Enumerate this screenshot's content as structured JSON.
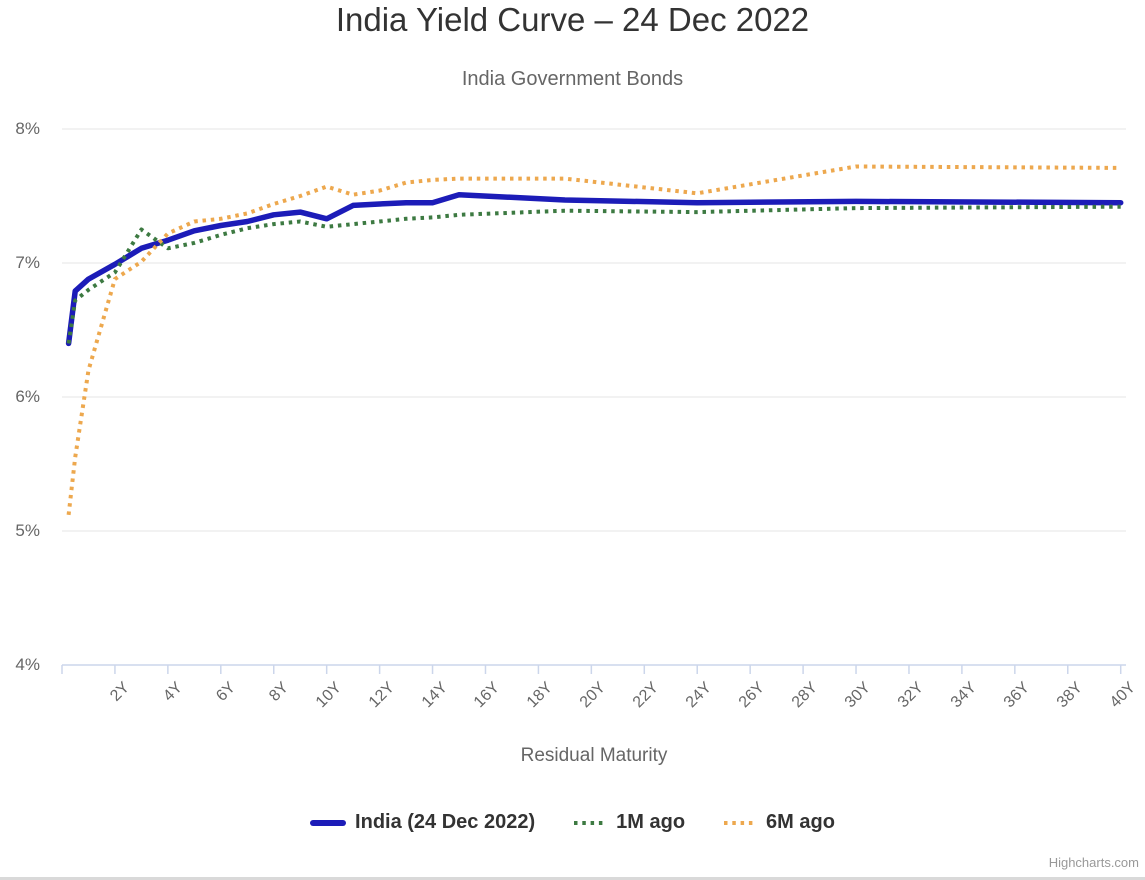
{
  "header": {
    "title": "India Yield Curve – 24 Dec 2022",
    "subtitle": "India Government Bonds"
  },
  "credits": {
    "label": "Highcharts.com"
  },
  "chart_data": {
    "type": "line",
    "title": "India Yield Curve – 24 Dec 2022",
    "subtitle": "India Government Bonds",
    "xlabel": "Residual Maturity",
    "ylabel": "",
    "x_unit": "years (residual maturity)",
    "y_unit": "percent yield",
    "xlim": [
      0,
      40.2
    ],
    "ylim": [
      4,
      8
    ],
    "grid": true,
    "legend_position": "bottom",
    "y_ticks": [
      {
        "value": 4,
        "label": "4%"
      },
      {
        "value": 5,
        "label": "5%"
      },
      {
        "value": 6,
        "label": "6%"
      },
      {
        "value": 7,
        "label": "7%"
      },
      {
        "value": 8,
        "label": "8%"
      }
    ],
    "x_ticks": [
      {
        "value": 0,
        "label": ""
      },
      {
        "value": 2,
        "label": "2Y"
      },
      {
        "value": 4,
        "label": "4Y"
      },
      {
        "value": 6,
        "label": "6Y"
      },
      {
        "value": 8,
        "label": "8Y"
      },
      {
        "value": 10,
        "label": "10Y"
      },
      {
        "value": 12,
        "label": "12Y"
      },
      {
        "value": 14,
        "label": "14Y"
      },
      {
        "value": 16,
        "label": "16Y"
      },
      {
        "value": 18,
        "label": "18Y"
      },
      {
        "value": 20,
        "label": "20Y"
      },
      {
        "value": 22,
        "label": "22Y"
      },
      {
        "value": 24,
        "label": "24Y"
      },
      {
        "value": 26,
        "label": "26Y"
      },
      {
        "value": 28,
        "label": "28Y"
      },
      {
        "value": 30,
        "label": "30Y"
      },
      {
        "value": 32,
        "label": "32Y"
      },
      {
        "value": 34,
        "label": "34Y"
      },
      {
        "value": 36,
        "label": "36Y"
      },
      {
        "value": 38,
        "label": "38Y"
      },
      {
        "value": 40,
        "label": "40Y"
      }
    ],
    "series": [
      {
        "name": "India (24 Dec 2022)",
        "color": "#1c1cb8",
        "line_style": "solid",
        "points": [
          [
            0.25,
            6.4
          ],
          [
            0.5,
            6.79
          ],
          [
            1,
            6.88
          ],
          [
            2,
            6.99
          ],
          [
            3,
            7.11
          ],
          [
            4,
            7.17
          ],
          [
            5,
            7.24
          ],
          [
            6,
            7.28
          ],
          [
            7,
            7.31
          ],
          [
            8,
            7.36
          ],
          [
            9,
            7.38
          ],
          [
            10,
            7.33
          ],
          [
            11,
            7.43
          ],
          [
            12,
            7.44
          ],
          [
            13,
            7.45
          ],
          [
            14,
            7.45
          ],
          [
            15,
            7.51
          ],
          [
            19,
            7.47
          ],
          [
            24,
            7.45
          ],
          [
            30,
            7.46
          ],
          [
            40,
            7.45
          ]
        ]
      },
      {
        "name": "1M ago",
        "color": "#3d7a42",
        "line_style": "dotted",
        "points": [
          [
            0.25,
            6.4
          ],
          [
            0.5,
            6.72
          ],
          [
            1,
            6.8
          ],
          [
            2,
            6.93
          ],
          [
            3,
            7.25
          ],
          [
            4,
            7.11
          ],
          [
            5,
            7.15
          ],
          [
            6,
            7.21
          ],
          [
            7,
            7.26
          ],
          [
            8,
            7.29
          ],
          [
            9,
            7.31
          ],
          [
            10,
            7.27
          ],
          [
            11,
            7.29
          ],
          [
            12,
            7.31
          ],
          [
            13,
            7.33
          ],
          [
            14,
            7.34
          ],
          [
            15,
            7.36
          ],
          [
            19,
            7.39
          ],
          [
            24,
            7.38
          ],
          [
            30,
            7.41
          ],
          [
            40,
            7.42
          ]
        ]
      },
      {
        "name": "6M ago",
        "color": "#eda84e",
        "line_style": "dotted",
        "points": [
          [
            0.25,
            5.12
          ],
          [
            0.5,
            5.55
          ],
          [
            1,
            6.2
          ],
          [
            2,
            6.88
          ],
          [
            3,
            7.01
          ],
          [
            4,
            7.22
          ],
          [
            5,
            7.31
          ],
          [
            6,
            7.33
          ],
          [
            7,
            7.37
          ],
          [
            8,
            7.44
          ],
          [
            9,
            7.5
          ],
          [
            10,
            7.57
          ],
          [
            11,
            7.51
          ],
          [
            12,
            7.54
          ],
          [
            13,
            7.6
          ],
          [
            14,
            7.62
          ],
          [
            15,
            7.63
          ],
          [
            19,
            7.63
          ],
          [
            24,
            7.52
          ],
          [
            30,
            7.72
          ],
          [
            40,
            7.71
          ]
        ]
      }
    ]
  },
  "colors": {
    "title": "#333333",
    "subtitle": "#666666",
    "axis_labels": "#666666",
    "grid_line": "#e6e6e6",
    "axis_line": "#ccd6eb",
    "legend_text": "#333333",
    "credits": "#999999"
  }
}
